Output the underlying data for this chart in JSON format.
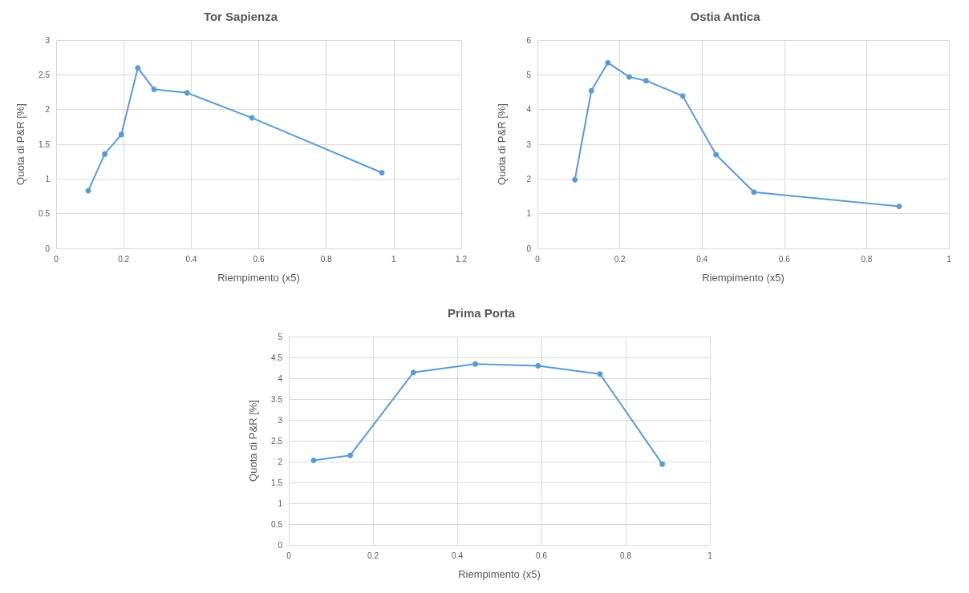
{
  "chart_data": [
    {
      "type": "line",
      "title": "Tor Sapienza",
      "xlabel": "Riempimento (x5)",
      "ylabel": "Quota di P&R [%]",
      "series": [
        {
          "color": "#5b9bd5",
          "x": [
            0.095,
            0.144,
            0.193,
            0.242,
            0.29,
            0.388,
            0.58,
            0.965
          ],
          "values": [
            0.83,
            1.36,
            1.64,
            2.6,
            2.29,
            2.24,
            1.88,
            1.09
          ]
        }
      ],
      "xlim": [
        0,
        1.2
      ],
      "xticks": [
        0,
        0.2,
        0.4,
        0.6,
        0.8,
        1,
        1.2
      ],
      "ylim": [
        0,
        3
      ],
      "yticks": [
        0,
        0.5,
        1,
        1.5,
        2,
        2.5,
        3
      ],
      "grid": true,
      "marker": "circle",
      "line_style": "solid"
    },
    {
      "type": "line",
      "title": "Ostia Antica",
      "xlabel": "Riempimento (x5)",
      "ylabel": "Quota di P&R [%]",
      "series": [
        {
          "color": "#5b9bd5",
          "x": [
            0.091,
            0.131,
            0.171,
            0.223,
            0.264,
            0.353,
            0.434,
            0.526,
            0.879
          ],
          "values": [
            1.98,
            4.54,
            5.35,
            4.94,
            4.83,
            4.39,
            2.7,
            1.62,
            1.21
          ]
        }
      ],
      "xlim": [
        0,
        1
      ],
      "xticks": [
        0,
        0.2,
        0.4,
        0.6,
        0.8,
        1
      ],
      "ylim": [
        0,
        6
      ],
      "yticks": [
        0,
        1,
        2,
        3,
        4,
        5,
        6
      ],
      "grid": true,
      "marker": "circle",
      "line_style": "solid"
    },
    {
      "type": "line",
      "title": "Prima Porta",
      "xlabel": "Riempimento (x5)",
      "ylabel": "Quota di P&R [%]",
      "series": [
        {
          "color": "#5b9bd5",
          "x": [
            0.059,
            0.146,
            0.296,
            0.443,
            0.592,
            0.739,
            0.887
          ],
          "values": [
            2.03,
            2.15,
            4.14,
            4.34,
            4.3,
            4.1,
            1.94
          ]
        }
      ],
      "xlim": [
        0,
        1
      ],
      "xticks": [
        0,
        0.2,
        0.4,
        0.6,
        0.8,
        1
      ],
      "ylim": [
        0,
        5
      ],
      "yticks": [
        0,
        0.5,
        1,
        1.5,
        2,
        2.5,
        3,
        3.5,
        4,
        4.5,
        5
      ],
      "grid": true,
      "marker": "circle",
      "line_style": "solid"
    }
  ]
}
